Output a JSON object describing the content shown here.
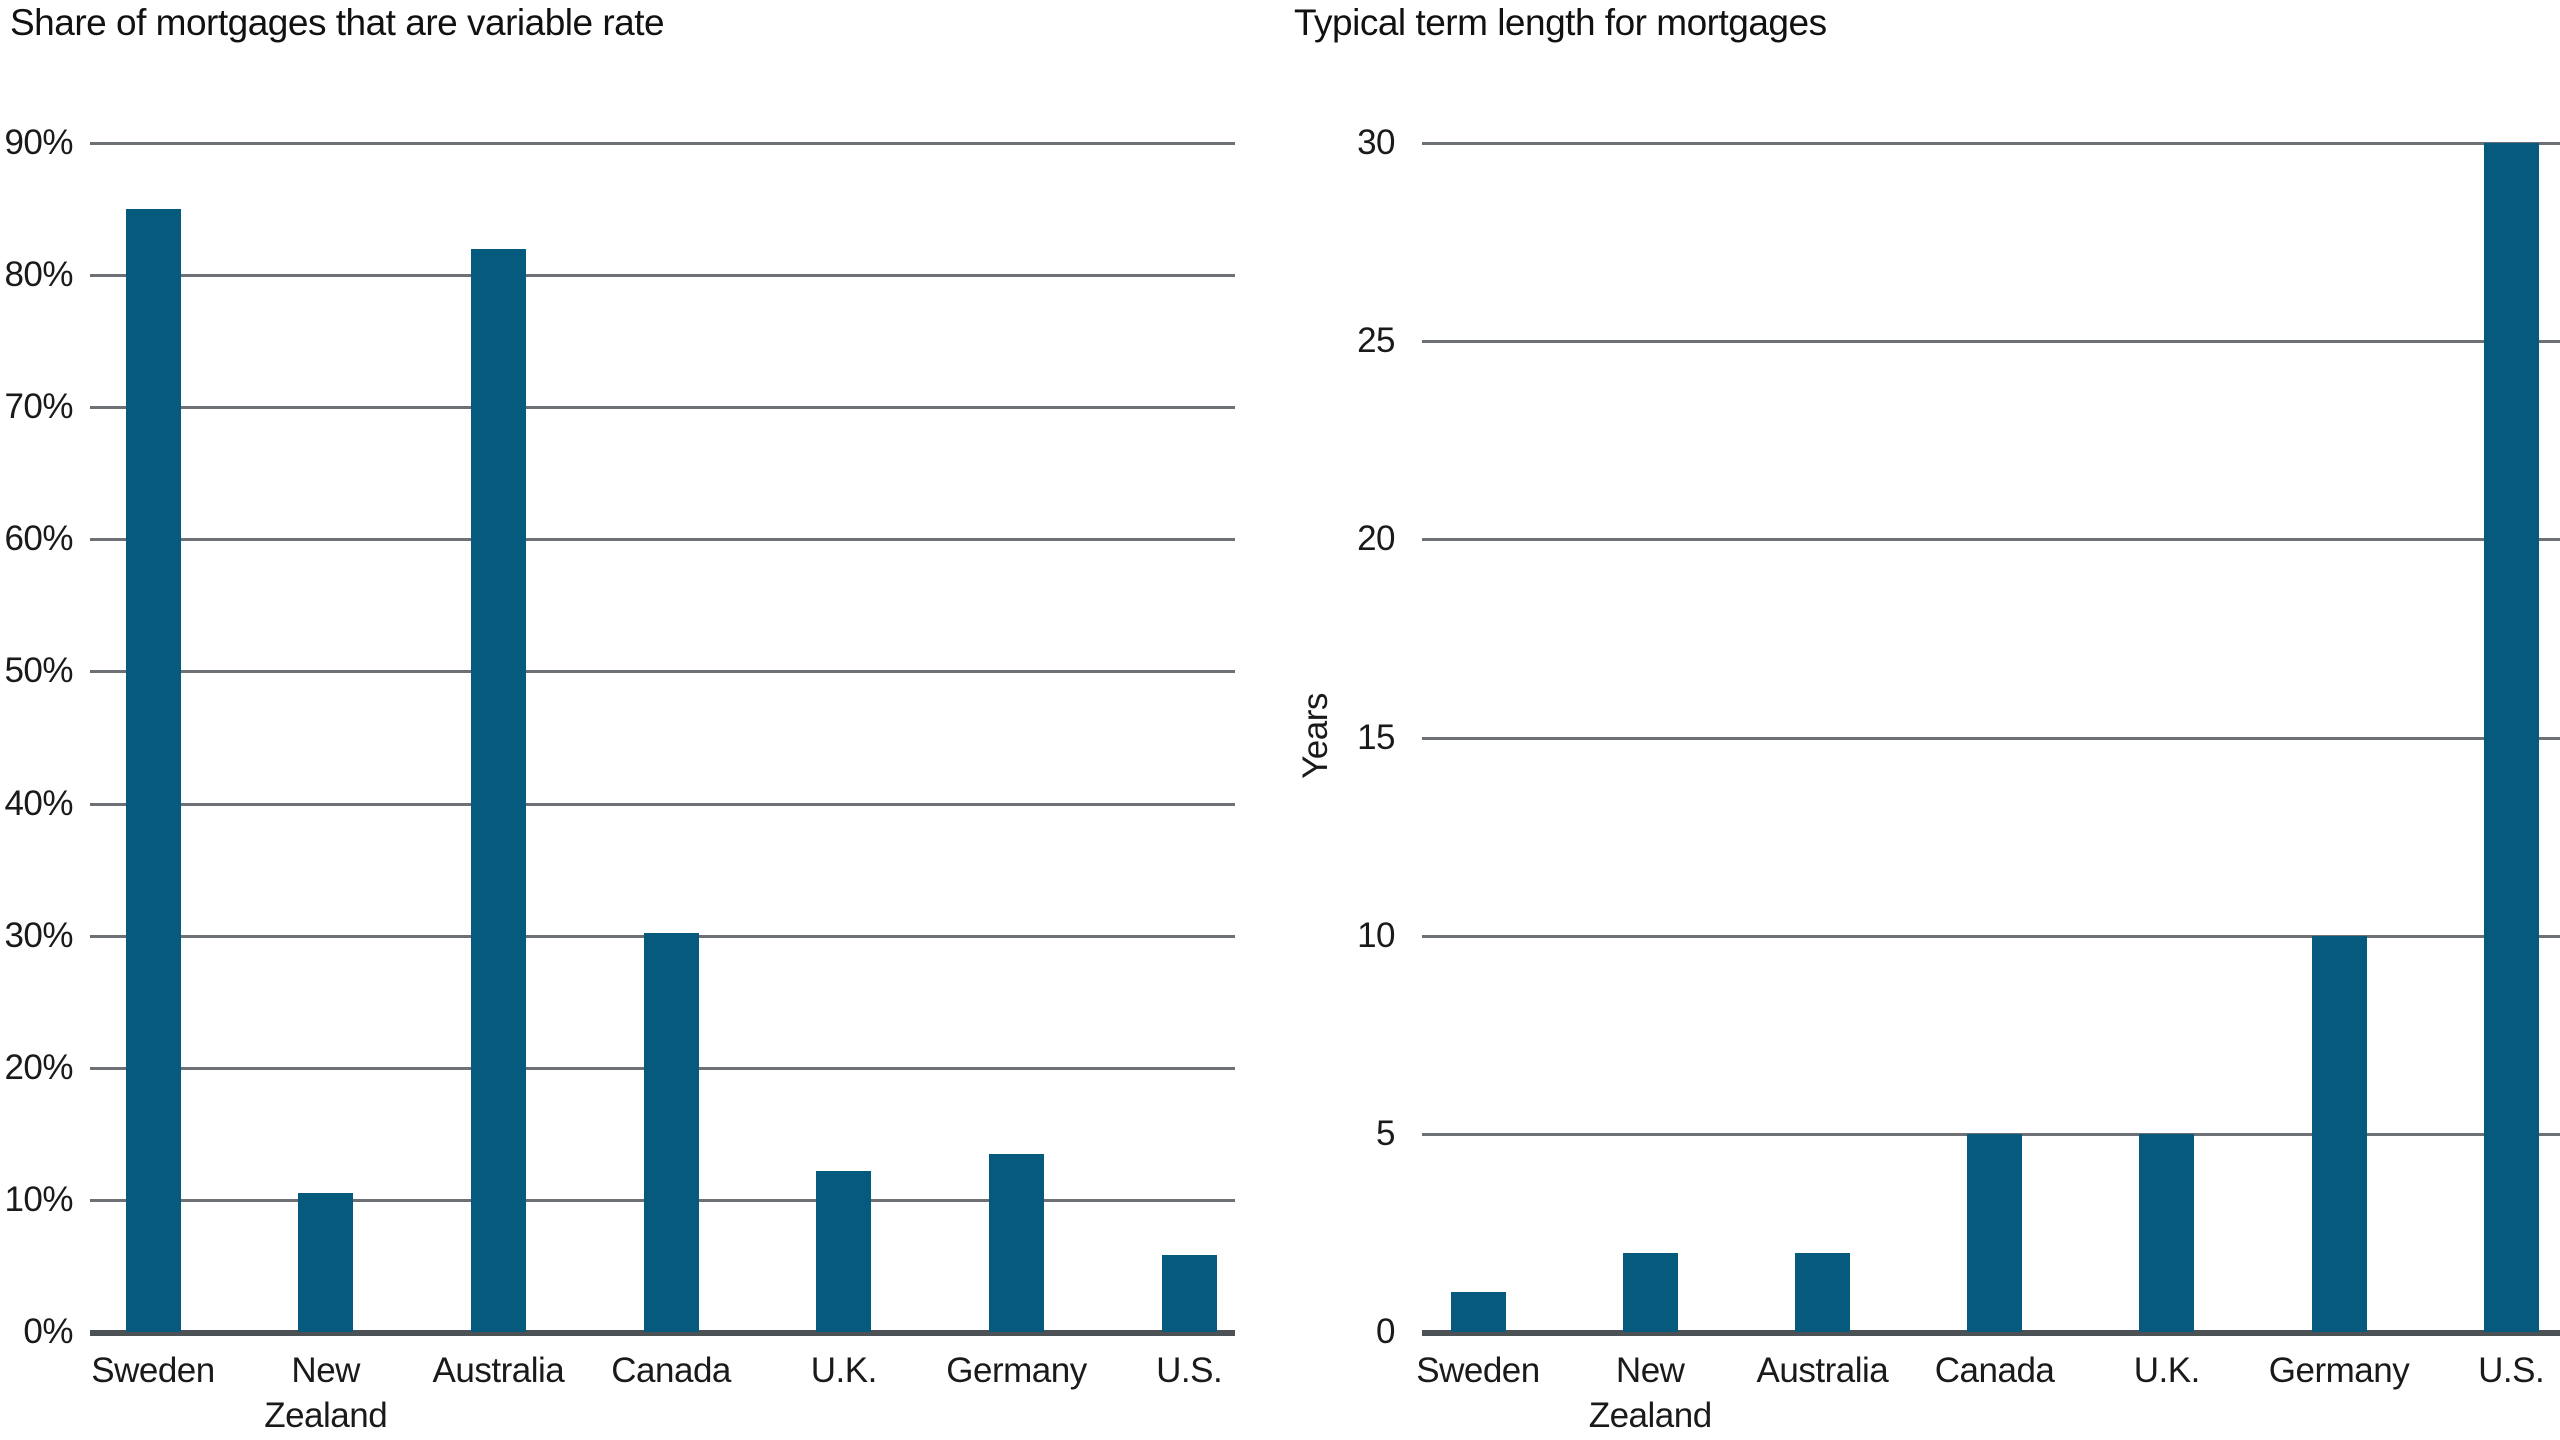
{
  "colors": {
    "bar": "#055a7e",
    "gridline": "#6d7176",
    "axis_baseline": "#4c5156",
    "text": "#1a1a1a"
  },
  "chart_data": [
    {
      "type": "bar",
      "title": "Share of mortgages that are variable rate",
      "categories": [
        "Sweden",
        "New Zealand",
        "Australia",
        "Canada",
        "U.K.",
        "Germany",
        "U.S."
      ],
      "values": [
        85,
        10.5,
        82,
        30.2,
        12.2,
        13.5,
        5.8
      ],
      "xlabel": "",
      "ylabel": "",
      "ylim": [
        0,
        90
      ],
      "grid": true,
      "legend": "none",
      "yticks": [
        {
          "value": 90,
          "label": "90%"
        },
        {
          "value": 80,
          "label": "80%"
        },
        {
          "value": 70,
          "label": "70%"
        },
        {
          "value": 60,
          "label": "60%"
        },
        {
          "value": 50,
          "label": "50%"
        },
        {
          "value": 40,
          "label": "40%"
        },
        {
          "value": 30,
          "label": "30%"
        },
        {
          "value": 20,
          "label": "20%"
        },
        {
          "value": 10,
          "label": "10%"
        },
        {
          "value": 0,
          "label": "0%"
        }
      ]
    },
    {
      "type": "bar",
      "title": "Typical term length for mortgages",
      "categories": [
        "Sweden",
        "New Zealand",
        "Australia",
        "Canada",
        "U.K.",
        "Germany",
        "U.S."
      ],
      "values": [
        1,
        2,
        2,
        5,
        5,
        10,
        30
      ],
      "xlabel": "",
      "ylabel": "Years",
      "ylim": [
        0,
        30
      ],
      "grid": true,
      "legend": "none",
      "yticks": [
        {
          "value": 30,
          "label": "30"
        },
        {
          "value": 25,
          "label": "25"
        },
        {
          "value": 20,
          "label": "20"
        },
        {
          "value": 15,
          "label": "15"
        },
        {
          "value": 10,
          "label": "10"
        },
        {
          "value": 5,
          "label": "5"
        },
        {
          "value": 0,
          "label": "0"
        }
      ]
    }
  ]
}
